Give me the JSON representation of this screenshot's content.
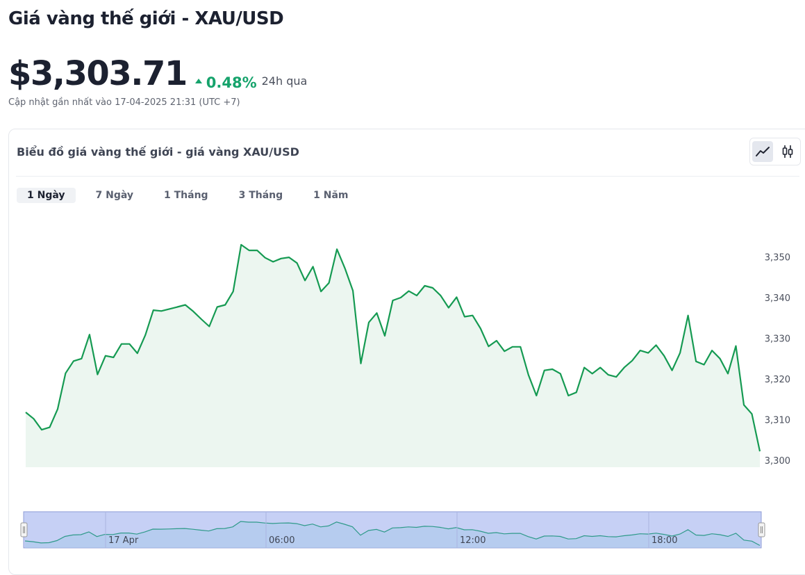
{
  "header": {
    "title": "Giá vàng thế giới - XAU/USD",
    "price": "$3,303.71",
    "change": "0.48%",
    "change_period": "24h qua",
    "updated": "Cập nhật gần nhất vào 17-04-2025 21:31 (UTC +7)",
    "change_color": "#16a36c"
  },
  "card": {
    "title": "Biểu đồ giá vàng thế giới - giá vàng XAU/USD",
    "chart_type_icons": [
      "line-chart-icon",
      "candlestick-chart-icon"
    ],
    "active_chart_type": "line"
  },
  "tabs": [
    {
      "label": "1 Ngày",
      "active": true
    },
    {
      "label": "7 Ngày",
      "active": false
    },
    {
      "label": "1 Tháng",
      "active": false
    },
    {
      "label": "3 Tháng",
      "active": false
    },
    {
      "label": "1 Năm",
      "active": false
    }
  ],
  "chart_data": {
    "type": "area",
    "ylim": [
      3300,
      3356
    ],
    "yticks": [
      3300,
      3310,
      3320,
      3330,
      3340,
      3350
    ],
    "ytick_labels": [
      "3,300",
      "3,310",
      "3,320",
      "3,330",
      "3,340",
      "3,350"
    ],
    "line_color": "#159a52",
    "fill_color": "#ecf6f0",
    "navigator_labels": [
      "17 Apr",
      "06:00",
      "12:00",
      "18:00"
    ],
    "values": [
      3311.8,
      3310.2,
      3307.5,
      3308.1,
      3312.6,
      3321.4,
      3324.4,
      3325.0,
      3330.9,
      3321.1,
      3325.7,
      3325.3,
      3328.6,
      3328.6,
      3326.3,
      3330.8,
      3336.9,
      3336.7,
      3337.2,
      3337.7,
      3338.2,
      3336.6,
      3334.7,
      3332.9,
      3337.7,
      3338.2,
      3341.5,
      3353.0,
      3351.6,
      3351.6,
      3349.8,
      3348.8,
      3349.6,
      3349.9,
      3348.5,
      3344.2,
      3347.6,
      3341.5,
      3343.6,
      3351.9,
      3347.2,
      3341.7,
      3323.8,
      3333.9,
      3336.2,
      3330.6,
      3339.3,
      3340.0,
      3341.6,
      3340.5,
      3342.9,
      3342.4,
      3340.5,
      3337.5,
      3340.1,
      3335.3,
      3335.6,
      3332.4,
      3328.0,
      3329.4,
      3326.8,
      3327.9,
      3327.9,
      3321.0,
      3315.9,
      3322.1,
      3322.4,
      3321.3,
      3315.9,
      3316.7,
      3322.8,
      3321.3,
      3322.8,
      3321.0,
      3320.5,
      3322.8,
      3324.5,
      3327.0,
      3326.4,
      3328.3,
      3325.7,
      3322.1,
      3326.4,
      3335.6,
      3324.3,
      3323.5,
      3327.0,
      3325.0,
      3321.3,
      3328.1,
      3313.6,
      3311.4,
      3302.2
    ]
  }
}
